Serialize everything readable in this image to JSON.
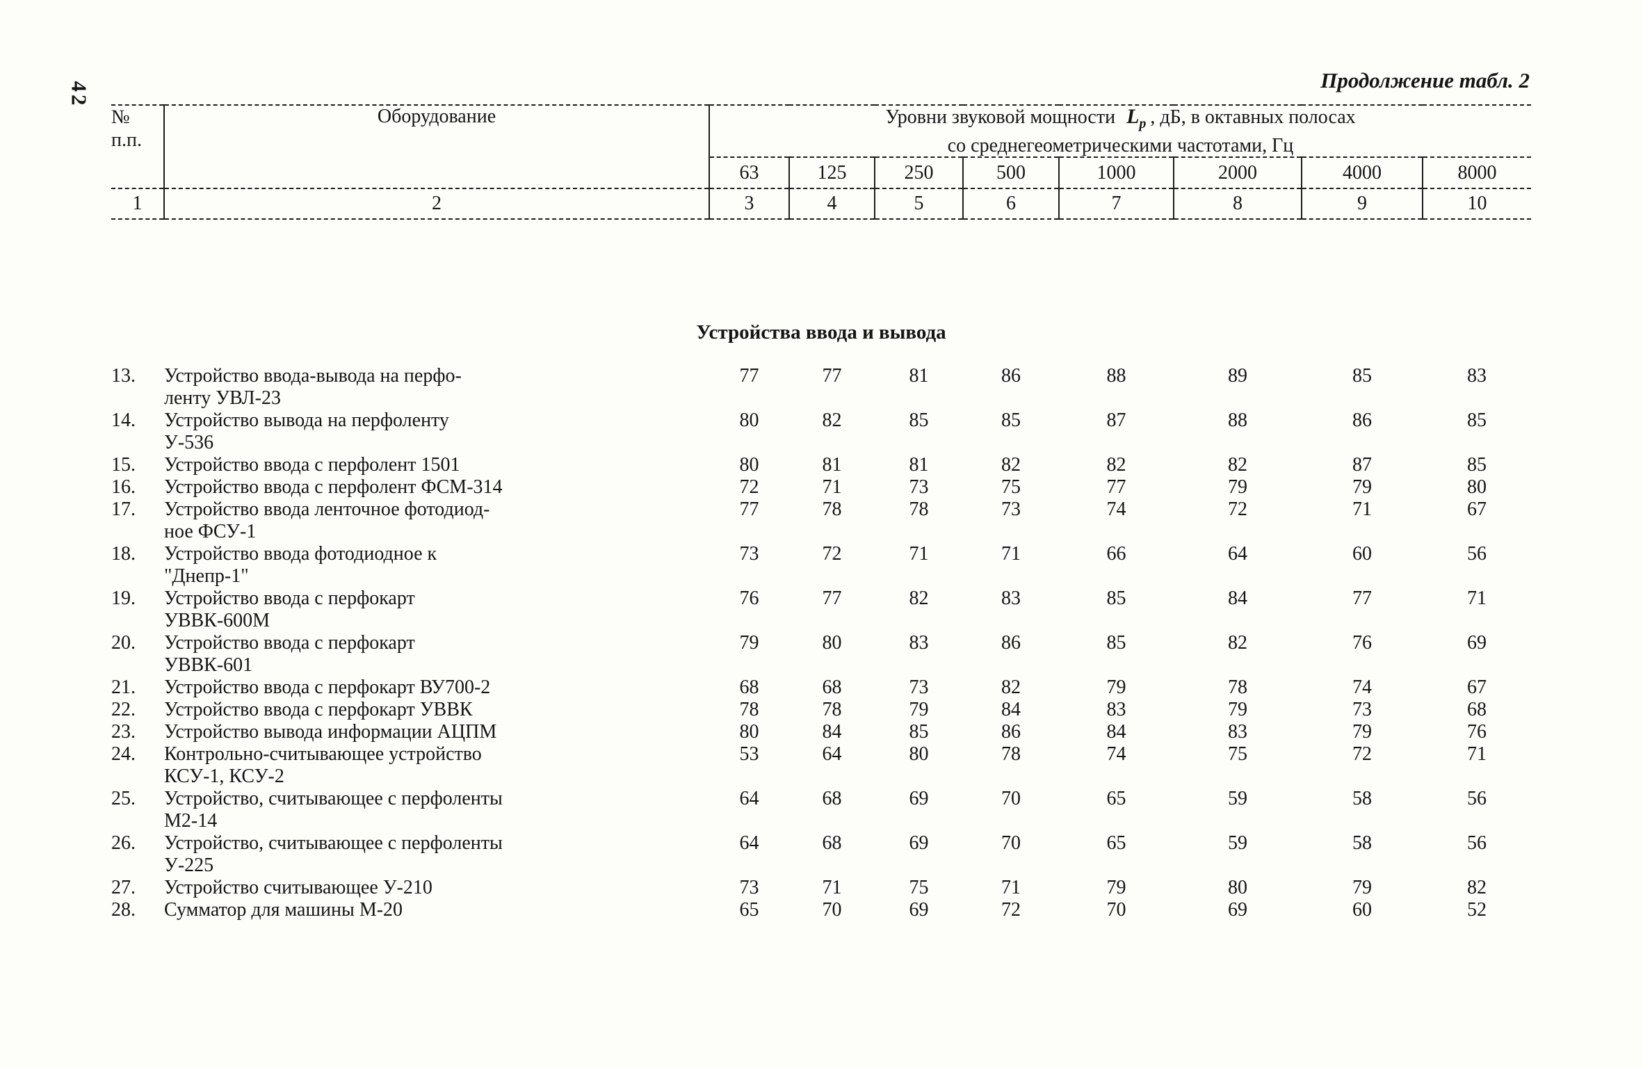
{
  "page": {
    "number": "42",
    "caption": "Продолжение табл. 2"
  },
  "table": {
    "col_num_header": "№\nп.п.",
    "equipment_header": "Оборудование",
    "freq_header": {
      "prefix": "Уровни звуковой мощности",
      "symbol": "L",
      "symbol_sub": "p",
      "suffix": ", дБ, в октавных полосах",
      "line2": "со среднегеометрическими частотами, Гц"
    },
    "frequencies": [
      "63",
      "125",
      "250",
      "500",
      "1000",
      "2000",
      "4000",
      "8000"
    ],
    "column_numbers": [
      "1",
      "2",
      "3",
      "4",
      "5",
      "6",
      "7",
      "8",
      "9",
      "10"
    ],
    "section_title": "Устройства ввода и вывода",
    "rows": [
      {
        "num": "13.",
        "name": "Устройство ввода-вывода на перфо-\nленту УВЛ-23",
        "values": [
          77,
          77,
          81,
          86,
          88,
          89,
          85,
          83
        ]
      },
      {
        "num": "14.",
        "name": "Устройство вывода на перфоленту\nУ-536",
        "values": [
          80,
          82,
          85,
          85,
          87,
          88,
          86,
          85
        ]
      },
      {
        "num": "15.",
        "name": "Устройство ввода с перфолент 1501",
        "values": [
          80,
          81,
          81,
          82,
          82,
          82,
          87,
          85
        ]
      },
      {
        "num": "16.",
        "name": "Устройство ввода с перфолент ФСМ-314",
        "values": [
          72,
          71,
          73,
          75,
          77,
          79,
          79,
          80
        ]
      },
      {
        "num": "17.",
        "name": "Устройство ввода ленточное фотодиод-\nное ФСУ-1",
        "values": [
          77,
          78,
          78,
          73,
          74,
          72,
          71,
          67
        ]
      },
      {
        "num": "18.",
        "name": "Устройство ввода фотодиодное к\n\"Днепр-1\"",
        "values": [
          73,
          72,
          71,
          71,
          66,
          64,
          60,
          56
        ]
      },
      {
        "num": "19.",
        "name": "Устройство ввода с перфокарт\nУВВК-600М",
        "values": [
          76,
          77,
          82,
          83,
          85,
          84,
          77,
          71
        ]
      },
      {
        "num": "20.",
        "name": "Устройство ввода с перфокарт\nУВВК-601",
        "values": [
          79,
          80,
          83,
          86,
          85,
          82,
          76,
          69
        ]
      },
      {
        "num": "21.",
        "name": "Устройство ввода с перфокарт ВУ700-2",
        "values": [
          68,
          68,
          73,
          82,
          79,
          78,
          74,
          67
        ]
      },
      {
        "num": "22.",
        "name": "Устройство ввода с перфокарт УВВК",
        "values": [
          78,
          78,
          79,
          84,
          83,
          79,
          73,
          68
        ]
      },
      {
        "num": "23.",
        "name": "Устройство вывода информации АЦПМ",
        "values": [
          80,
          84,
          85,
          86,
          84,
          83,
          79,
          76
        ]
      },
      {
        "num": "24.",
        "name": "Контрольно-считывающее устройство\nКСУ-1, КСУ-2",
        "values": [
          53,
          64,
          80,
          78,
          74,
          75,
          72,
          71
        ]
      },
      {
        "num": "25.",
        "name": "Устройство, считывающее с перфоленты\nМ2-14",
        "values": [
          64,
          68,
          69,
          70,
          65,
          59,
          58,
          56
        ]
      },
      {
        "num": "26.",
        "name": "Устройство, считывающее с перфоленты\nУ-225",
        "values": [
          64,
          68,
          69,
          70,
          65,
          59,
          58,
          56
        ]
      },
      {
        "num": "27.",
        "name": "Устройство считывающее У-210",
        "values": [
          73,
          71,
          75,
          71,
          79,
          80,
          79,
          82
        ]
      },
      {
        "num": "28.",
        "name": "Сумматор для машины М-20",
        "values": [
          65,
          70,
          69,
          72,
          70,
          69,
          60,
          52
        ]
      }
    ]
  }
}
